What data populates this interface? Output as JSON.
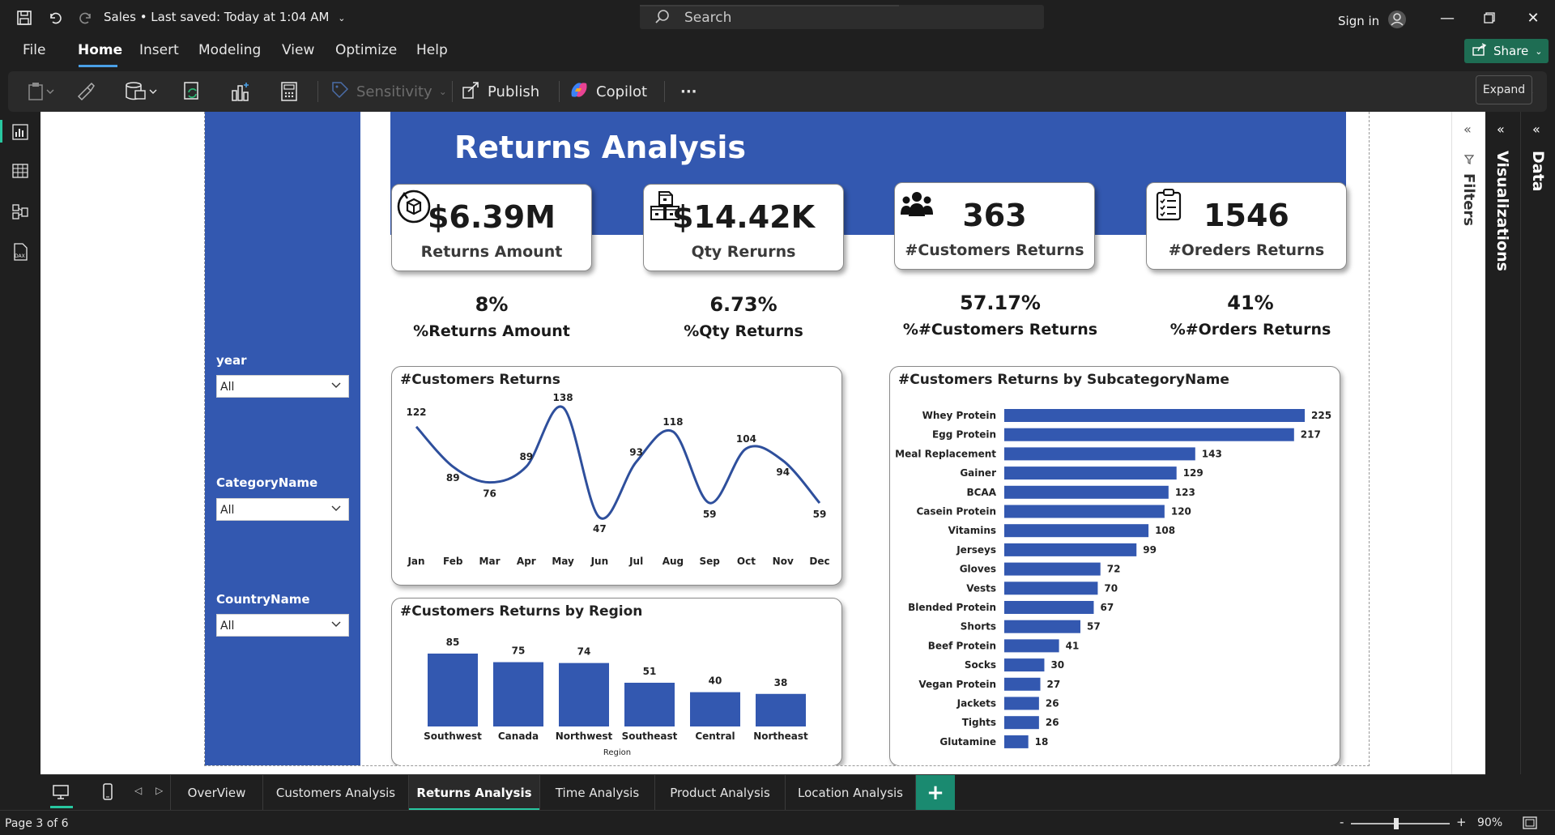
{
  "titlebar": {
    "doc_title": "Sales • Last saved: Today at 1:04 AM",
    "search_placeholder": "Search",
    "signin": "Sign in"
  },
  "menu": {
    "items": [
      "File",
      "Home",
      "Insert",
      "Modeling",
      "View",
      "Optimize",
      "Help"
    ],
    "active": "Home",
    "share": "Share"
  },
  "ribbon": {
    "sensitivity": "Sensitivity",
    "publish": "Publish",
    "copilot": "Copilot",
    "more": "···",
    "tooltip": "Expand"
  },
  "report": {
    "title": "Returns Analysis",
    "kpis": [
      {
        "value": "$6.39M",
        "label": "Returns Amount",
        "icon": "box-return-icon"
      },
      {
        "value": "$14.42K",
        "label": "Qty Rerurns",
        "icon": "boxes-icon"
      },
      {
        "value": "363",
        "label": "#Customers Returns",
        "icon": "users-icon"
      },
      {
        "value": "1546",
        "label": "#Oreders Returns",
        "icon": "clipboard-icon"
      }
    ],
    "percentages": [
      {
        "value": "8%",
        "label": "%Returns Amount"
      },
      {
        "value": "6.73%",
        "label": "%Qty Returns"
      },
      {
        "value": "57.17%",
        "label": "%#Customers Returns"
      },
      {
        "value": "41%",
        "label": "%#Orders Returns"
      }
    ],
    "slicers": [
      {
        "title": "year",
        "value": "All"
      },
      {
        "title": "CategoryName",
        "value": "All"
      },
      {
        "title": "CountryName",
        "value": "All"
      }
    ]
  },
  "chart_data": [
    {
      "type": "line",
      "title": "#Customers Returns",
      "categories": [
        "Jan",
        "Feb",
        "Mar",
        "Apr",
        "May",
        "Jun",
        "Jul",
        "Aug",
        "Sep",
        "Oct",
        "Nov",
        "Dec"
      ],
      "values": [
        122,
        89,
        76,
        89,
        138,
        47,
        93,
        118,
        59,
        104,
        94,
        59
      ],
      "color": "#2e4f9c"
    },
    {
      "type": "bar",
      "title": "#Customers Returns by Region",
      "categories": [
        "Southwest",
        "Canada",
        "Northwest",
        "Southeast",
        "Central",
        "Northeast"
      ],
      "values": [
        85,
        75,
        74,
        51,
        40,
        38
      ],
      "xlabel": "Region",
      "color": "#3358b0"
    },
    {
      "type": "bar",
      "orientation": "horizontal",
      "title": "#Customers Returns by SubcategoryName",
      "categories": [
        "Whey Protein",
        "Egg Protein",
        "Meal Replacement",
        "Gainer",
        "BCAA",
        "Casein Protein",
        "Vitamins",
        "Jerseys",
        "Gloves",
        "Vests",
        "Blended Protein",
        "Shorts",
        "Beef Protein",
        "Socks",
        "Vegan Protein",
        "Jackets",
        "Tights",
        "Glutamine"
      ],
      "values": [
        225,
        217,
        143,
        129,
        123,
        120,
        108,
        99,
        72,
        70,
        67,
        57,
        41,
        30,
        27,
        26,
        26,
        18
      ],
      "color": "#3358b0"
    }
  ],
  "panes": {
    "filters": "Filters",
    "visualizations": "Visualizations",
    "data": "Data"
  },
  "tabs": {
    "items": [
      "OverView",
      "Customers Analysis",
      "Returns Analysis",
      "Time Analysis",
      "Product Analysis",
      "Location Analysis"
    ],
    "active": "Returns Analysis",
    "add": "+"
  },
  "status": {
    "page": "Page 3 of 6",
    "zoom": "90%"
  }
}
